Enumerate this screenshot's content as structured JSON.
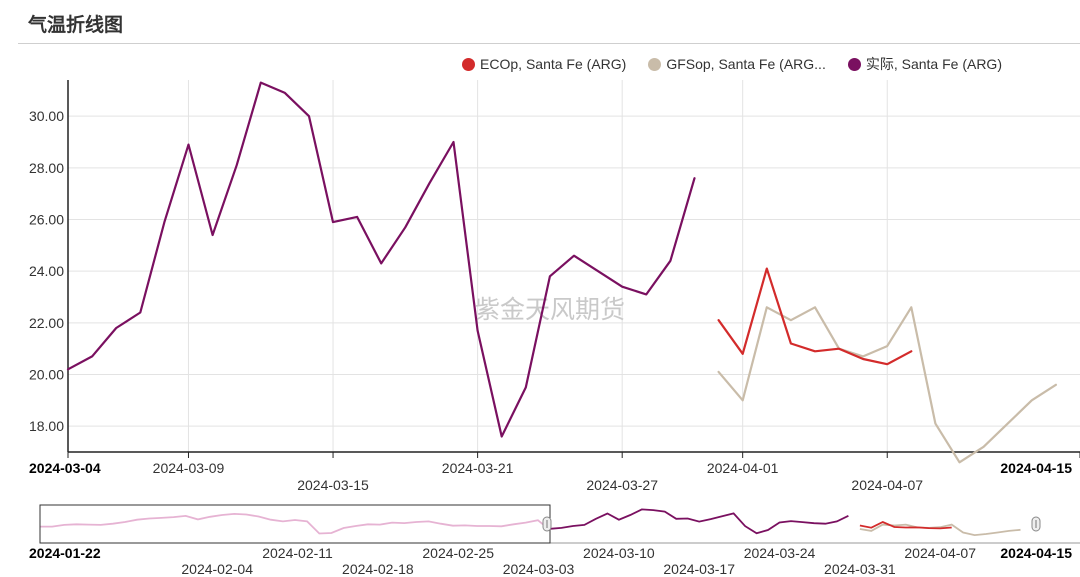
{
  "page": {
    "title": "气温折线图",
    "watermark": "紫金天风期货"
  },
  "colors": {
    "actual": "#7a1060",
    "ecop": "#d32b2b",
    "gfsop": "#c9bca9",
    "grid": "#e3e3e3",
    "axis": "#222222",
    "navigator_mask": "#e6b3d3"
  },
  "chart_data": {
    "type": "line",
    "title": "",
    "xlabel": "",
    "ylabel": "",
    "ylim": [
      17.0,
      31.4
    ],
    "xlim": [
      "2024-03-04",
      "2024-04-15"
    ],
    "yticks": [
      "18.00",
      "20.00",
      "22.00",
      "24.00",
      "26.00",
      "28.00",
      "30.00"
    ],
    "xticks": [
      {
        "label": "2024-03-04",
        "day": 0,
        "row": 0,
        "bold": true
      },
      {
        "label": "2024-03-09",
        "day": 5,
        "row": 0,
        "bold": false
      },
      {
        "label": "2024-03-15",
        "day": 11,
        "row": 1,
        "bold": false
      },
      {
        "label": "2024-03-21",
        "day": 17,
        "row": 0,
        "bold": false
      },
      {
        "label": "2024-03-27",
        "day": 23,
        "row": 1,
        "bold": false
      },
      {
        "label": "2024-04-01",
        "day": 28,
        "row": 0,
        "bold": false
      },
      {
        "label": "2024-04-07",
        "day": 34,
        "row": 1,
        "bold": false
      },
      {
        "label": "2024-04-15",
        "day": 42,
        "row": 0,
        "bold": true
      }
    ],
    "series": [
      {
        "name": "ECOp, Santa Fe (ARG)",
        "color": "#d32b2b",
        "start_date": "2024-03-31",
        "start_day": 27,
        "values": [
          22.1,
          20.8,
          24.1,
          21.2,
          20.9,
          21.0,
          20.6,
          20.4,
          20.9
        ]
      },
      {
        "name": "GFSop, Santa Fe (ARG...",
        "color": "#c9bca9",
        "start_date": "2024-03-31",
        "start_day": 27,
        "values": [
          20.1,
          19.0,
          22.6,
          22.1,
          22.6,
          21.0,
          20.7,
          21.1,
          22.6,
          18.1,
          16.6,
          17.2,
          18.1,
          19.0,
          19.6
        ]
      },
      {
        "name": "实际, Santa Fe (ARG)",
        "color": "#7a1060",
        "start_date": "2024-03-04",
        "start_day": 0,
        "values": [
          20.2,
          20.7,
          21.8,
          22.4,
          25.9,
          28.9,
          25.4,
          28.1,
          31.3,
          30.9,
          30.0,
          25.9,
          26.1,
          24.3,
          25.7,
          27.4,
          29.0,
          21.7,
          17.6,
          19.5,
          23.8,
          24.6,
          24.0,
          23.4,
          23.1,
          24.4,
          27.6
        ]
      }
    ]
  },
  "navigator": {
    "range_start": "2024-01-22",
    "range_end": "2024-04-15",
    "labels": [
      {
        "label": "2024-01-22",
        "day": 0,
        "row": 0,
        "bold": true
      },
      {
        "label": "2024-02-04",
        "day": 13,
        "row": 1,
        "bold": false
      },
      {
        "label": "2024-02-11",
        "day": 20,
        "row": 0,
        "bold": false
      },
      {
        "label": "2024-02-18",
        "day": 27,
        "row": 1,
        "bold": false
      },
      {
        "label": "2024-02-25",
        "day": 34,
        "row": 0,
        "bold": false
      },
      {
        "label": "2024-03-03",
        "day": 41,
        "row": 1,
        "bold": false
      },
      {
        "label": "2024-03-10",
        "day": 48,
        "row": 0,
        "bold": false
      },
      {
        "label": "2024-03-17",
        "day": 55,
        "row": 1,
        "bold": false
      },
      {
        "label": "2024-03-24",
        "day": 62,
        "row": 0,
        "bold": false
      },
      {
        "label": "2024-03-31",
        "day": 69,
        "row": 1,
        "bold": false
      },
      {
        "label": "2024-04-07",
        "day": 76,
        "row": 0,
        "bold": false
      },
      {
        "label": "2024-04-15",
        "day": 84,
        "row": 0,
        "bold": true
      }
    ],
    "selection_start_day": 0,
    "selection_end_day": 42,
    "history_start_day": 0,
    "history_values": [
      25.6,
      25.6,
      26.2,
      26.4,
      26.3,
      26.2,
      26.6,
      27.2,
      28.0,
      28.4,
      28.6,
      28.9,
      29.3,
      28.1,
      29.0,
      29.6,
      30.0,
      29.8,
      29.1,
      28.0,
      27.4,
      27.9,
      27.4,
      23.2,
      23.4,
      25.1,
      25.8,
      26.4,
      26.3,
      27.0,
      26.8,
      27.2,
      27.4,
      26.6,
      25.9,
      26.0,
      25.8,
      25.8,
      25.7,
      26.4,
      27.0,
      27.8,
      24.4
    ]
  }
}
